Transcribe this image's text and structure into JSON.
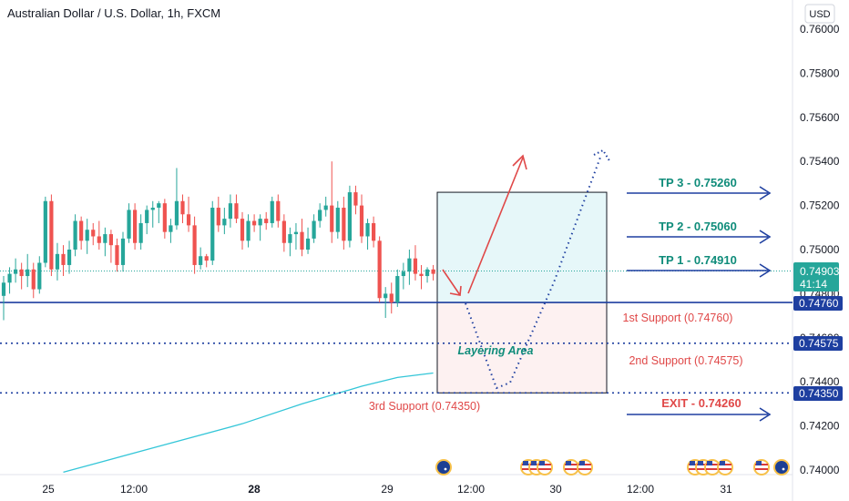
{
  "header": {
    "title": "Australian Dollar / U.S. Dollar, 1h, FXCM"
  },
  "currency_button": "USD",
  "price_labels": {
    "current": "0.74903",
    "countdown": "41:14",
    "support1": "0.74760",
    "support2": "0.74575",
    "support3": "0.74350"
  },
  "annotations": {
    "tp3": "TP 3 - 0.75260",
    "tp2": "TP 2 - 0.75060",
    "tp1": "TP 1 - 0.74910",
    "support1": "1st Support (0.74760)",
    "support2": "2nd Support (0.74575)",
    "support3": "3rd Support (0.74350)",
    "exit": "EXIT - 0.74260",
    "layering": "Layering Area"
  },
  "colors": {
    "bull": "#26a69a",
    "bear": "#ef5350",
    "support_line": "#1e3fa0",
    "arrow_blue": "#1e3fa0",
    "tp_text": "#0f8c7a",
    "support_text": "#e04848",
    "ma_line": "#34c6d8",
    "tp_zone": "#e6f7f9",
    "sl_zone": "#fdf1f1"
  },
  "chart_data": {
    "type": "candlestick",
    "title": "Australian Dollar / U.S. Dollar, 1h, FXCM",
    "x_ticks": [
      "25",
      "12:00",
      "28",
      "12:00",
      "29",
      "12:00",
      "30",
      "12:00",
      "31"
    ],
    "y_ticks": [
      "0.76000",
      "0.75800",
      "0.75600",
      "0.75400",
      "0.75200",
      "0.75000",
      "0.74800",
      "0.74600",
      "0.74400",
      "0.74200",
      "0.74000"
    ],
    "ylim": [
      0.7399,
      0.7612
    ],
    "candles": [
      {
        "o": 0.7479,
        "h": 0.7488,
        "l": 0.7468,
        "c": 0.7485
      },
      {
        "o": 0.7485,
        "h": 0.7492,
        "l": 0.748,
        "c": 0.7489
      },
      {
        "o": 0.7489,
        "h": 0.7496,
        "l": 0.7485,
        "c": 0.7491
      },
      {
        "o": 0.7491,
        "h": 0.7494,
        "l": 0.7482,
        "c": 0.7488
      },
      {
        "o": 0.7488,
        "h": 0.7498,
        "l": 0.7483,
        "c": 0.7491
      },
      {
        "o": 0.7491,
        "h": 0.7494,
        "l": 0.7478,
        "c": 0.7482
      },
      {
        "o": 0.7482,
        "h": 0.7497,
        "l": 0.748,
        "c": 0.7494
      },
      {
        "o": 0.7494,
        "h": 0.7524,
        "l": 0.7492,
        "c": 0.7522
      },
      {
        "o": 0.7522,
        "h": 0.7525,
        "l": 0.7488,
        "c": 0.7491
      },
      {
        "o": 0.7491,
        "h": 0.7503,
        "l": 0.7486,
        "c": 0.7498
      },
      {
        "o": 0.7498,
        "h": 0.7502,
        "l": 0.7488,
        "c": 0.7493
      },
      {
        "o": 0.7493,
        "h": 0.7504,
        "l": 0.7489,
        "c": 0.75
      },
      {
        "o": 0.75,
        "h": 0.7516,
        "l": 0.7497,
        "c": 0.7513
      },
      {
        "o": 0.7513,
        "h": 0.7515,
        "l": 0.75,
        "c": 0.7504
      },
      {
        "o": 0.7504,
        "h": 0.7514,
        "l": 0.7498,
        "c": 0.7509
      },
      {
        "o": 0.7509,
        "h": 0.7512,
        "l": 0.7502,
        "c": 0.7506
      },
      {
        "o": 0.7506,
        "h": 0.7513,
        "l": 0.75,
        "c": 0.7503
      },
      {
        "o": 0.7503,
        "h": 0.751,
        "l": 0.7497,
        "c": 0.7507
      },
      {
        "o": 0.7507,
        "h": 0.7509,
        "l": 0.7494,
        "c": 0.7502
      },
      {
        "o": 0.7502,
        "h": 0.7505,
        "l": 0.749,
        "c": 0.7493
      },
      {
        "o": 0.7493,
        "h": 0.7508,
        "l": 0.749,
        "c": 0.7505
      },
      {
        "o": 0.7505,
        "h": 0.7521,
        "l": 0.7503,
        "c": 0.7518
      },
      {
        "o": 0.7518,
        "h": 0.7521,
        "l": 0.75,
        "c": 0.7503
      },
      {
        "o": 0.7503,
        "h": 0.7516,
        "l": 0.75,
        "c": 0.7512
      },
      {
        "o": 0.7512,
        "h": 0.752,
        "l": 0.7507,
        "c": 0.7518
      },
      {
        "o": 0.7518,
        "h": 0.7522,
        "l": 0.751,
        "c": 0.7519
      },
      {
        "o": 0.7519,
        "h": 0.7522,
        "l": 0.7512,
        "c": 0.7521
      },
      {
        "o": 0.7521,
        "h": 0.7523,
        "l": 0.7505,
        "c": 0.7508
      },
      {
        "o": 0.7508,
        "h": 0.7514,
        "l": 0.7503,
        "c": 0.7511
      },
      {
        "o": 0.7511,
        "h": 0.7537,
        "l": 0.7509,
        "c": 0.7522
      },
      {
        "o": 0.7522,
        "h": 0.7525,
        "l": 0.7512,
        "c": 0.7516
      },
      {
        "o": 0.7516,
        "h": 0.7524,
        "l": 0.7508,
        "c": 0.7511
      },
      {
        "o": 0.7511,
        "h": 0.7515,
        "l": 0.7489,
        "c": 0.7493
      },
      {
        "o": 0.7493,
        "h": 0.7501,
        "l": 0.7491,
        "c": 0.7497
      },
      {
        "o": 0.7497,
        "h": 0.7498,
        "l": 0.7492,
        "c": 0.7495
      },
      {
        "o": 0.7495,
        "h": 0.7522,
        "l": 0.7493,
        "c": 0.7519
      },
      {
        "o": 0.7519,
        "h": 0.7524,
        "l": 0.7508,
        "c": 0.7511
      },
      {
        "o": 0.7511,
        "h": 0.7519,
        "l": 0.7507,
        "c": 0.7514
      },
      {
        "o": 0.7514,
        "h": 0.7525,
        "l": 0.751,
        "c": 0.7521
      },
      {
        "o": 0.7521,
        "h": 0.7525,
        "l": 0.7512,
        "c": 0.7514
      },
      {
        "o": 0.7514,
        "h": 0.7517,
        "l": 0.75,
        "c": 0.7504
      },
      {
        "o": 0.7504,
        "h": 0.7516,
        "l": 0.7501,
        "c": 0.7513
      },
      {
        "o": 0.7513,
        "h": 0.7516,
        "l": 0.7508,
        "c": 0.7511
      },
      {
        "o": 0.7511,
        "h": 0.7516,
        "l": 0.7504,
        "c": 0.7514
      },
      {
        "o": 0.7514,
        "h": 0.7517,
        "l": 0.7509,
        "c": 0.7512
      },
      {
        "o": 0.7512,
        "h": 0.7524,
        "l": 0.751,
        "c": 0.7522
      },
      {
        "o": 0.7522,
        "h": 0.7525,
        "l": 0.751,
        "c": 0.7513
      },
      {
        "o": 0.7513,
        "h": 0.7516,
        "l": 0.7499,
        "c": 0.7503
      },
      {
        "o": 0.7503,
        "h": 0.751,
        "l": 0.7497,
        "c": 0.7507
      },
      {
        "o": 0.7507,
        "h": 0.7512,
        "l": 0.75,
        "c": 0.7508
      },
      {
        "o": 0.7508,
        "h": 0.7514,
        "l": 0.7497,
        "c": 0.75
      },
      {
        "o": 0.75,
        "h": 0.751,
        "l": 0.7498,
        "c": 0.7505
      },
      {
        "o": 0.7505,
        "h": 0.7516,
        "l": 0.7503,
        "c": 0.7513
      },
      {
        "o": 0.7513,
        "h": 0.7521,
        "l": 0.751,
        "c": 0.7518
      },
      {
        "o": 0.7518,
        "h": 0.7524,
        "l": 0.7515,
        "c": 0.752
      },
      {
        "o": 0.752,
        "h": 0.754,
        "l": 0.7503,
        "c": 0.7508
      },
      {
        "o": 0.7508,
        "h": 0.7522,
        "l": 0.7505,
        "c": 0.7519
      },
      {
        "o": 0.7519,
        "h": 0.7524,
        "l": 0.75,
        "c": 0.7504
      },
      {
        "o": 0.7504,
        "h": 0.7529,
        "l": 0.7501,
        "c": 0.7526
      },
      {
        "o": 0.7526,
        "h": 0.7529,
        "l": 0.7516,
        "c": 0.752
      },
      {
        "o": 0.752,
        "h": 0.7525,
        "l": 0.7503,
        "c": 0.7506
      },
      {
        "o": 0.7506,
        "h": 0.7514,
        "l": 0.75,
        "c": 0.7512
      },
      {
        "o": 0.7512,
        "h": 0.7515,
        "l": 0.7501,
        "c": 0.7504
      },
      {
        "o": 0.7504,
        "h": 0.7506,
        "l": 0.7476,
        "c": 0.7478
      },
      {
        "o": 0.7478,
        "h": 0.7483,
        "l": 0.7469,
        "c": 0.748
      },
      {
        "o": 0.748,
        "h": 0.7485,
        "l": 0.7471,
        "c": 0.7476
      },
      {
        "o": 0.7476,
        "h": 0.7491,
        "l": 0.7474,
        "c": 0.7488
      },
      {
        "o": 0.7488,
        "h": 0.7494,
        "l": 0.7482,
        "c": 0.749
      },
      {
        "o": 0.749,
        "h": 0.75,
        "l": 0.7484,
        "c": 0.7496
      },
      {
        "o": 0.7496,
        "h": 0.7502,
        "l": 0.7486,
        "c": 0.7489
      },
      {
        "o": 0.7489,
        "h": 0.7493,
        "l": 0.7482,
        "c": 0.7488
      },
      {
        "o": 0.7488,
        "h": 0.7492,
        "l": 0.7485,
        "c": 0.7491
      },
      {
        "o": 0.7491,
        "h": 0.7493,
        "l": 0.7486,
        "c": 0.7489
      }
    ],
    "moving_average": [
      {
        "i": 10,
        "v": 0.7399
      },
      {
        "i": 25,
        "v": 0.741
      },
      {
        "i": 40,
        "v": 0.7421
      },
      {
        "i": 50,
        "v": 0.743
      },
      {
        "i": 60,
        "v": 0.7438
      },
      {
        "i": 66,
        "v": 0.7442
      },
      {
        "i": 72,
        "v": 0.7444
      }
    ],
    "levels": {
      "tp3": 0.7526,
      "tp2": 0.7506,
      "tp1": 0.7491,
      "support1": 0.7476,
      "support2": 0.74575,
      "support3": 0.7435,
      "exit": 0.7426,
      "current": 0.74903
    }
  }
}
